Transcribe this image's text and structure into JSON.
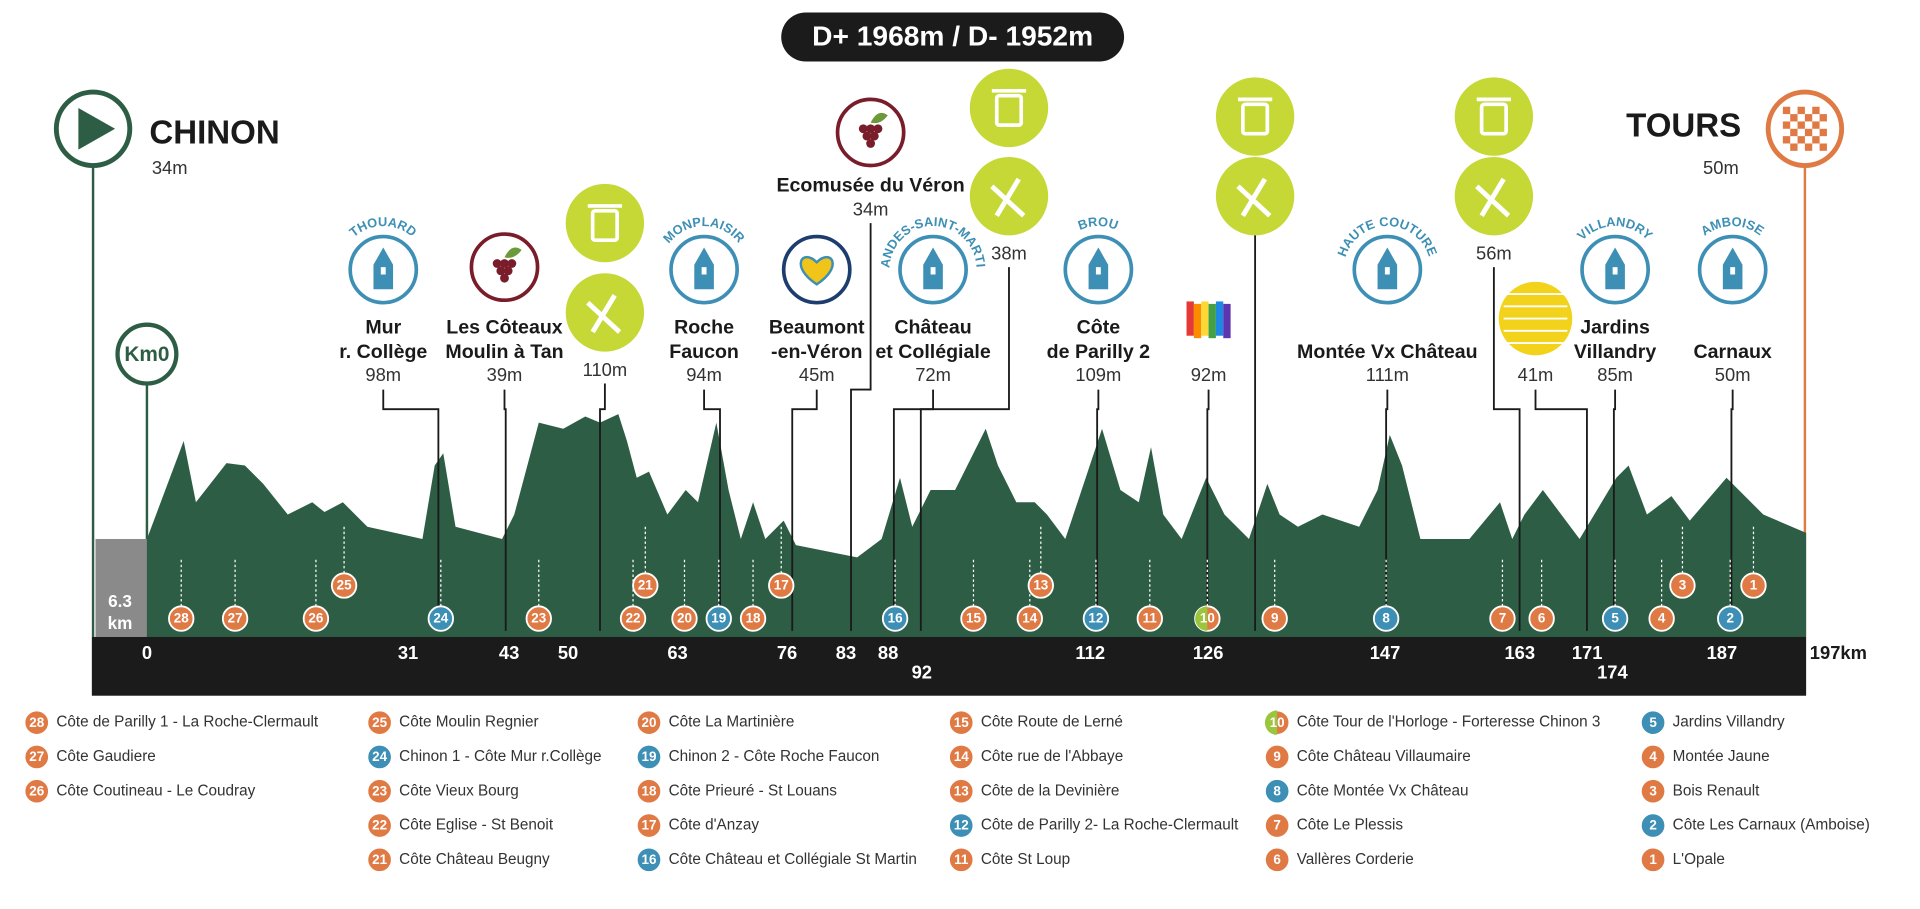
{
  "header": {
    "elevation": "D+ 1968m / D- 1952m"
  },
  "start": {
    "name": "CHINON",
    "altitude": "34m"
  },
  "finish": {
    "name": "TOURS",
    "altitude": "50m"
  },
  "km0": "Km0",
  "prologue": [
    "6.3",
    "km"
  ],
  "km_markers": [
    0,
    31,
    43,
    50,
    63,
    76,
    83,
    88,
    92,
    112,
    126,
    147,
    163,
    171,
    174,
    187,
    {
      "value": 197,
      "label": "197km"
    }
  ],
  "points": [
    {
      "icon": "tower",
      "town": "THOUARD",
      "name": [
        "Mur",
        "r. Collège"
      ],
      "altitude": "98m"
    },
    {
      "icon": "wine",
      "name": [
        "Les Côteaux",
        "Moulin à Tan"
      ],
      "altitude": "39m"
    },
    {
      "icon": "services",
      "altitude": "110m"
    },
    {
      "icon": "tower",
      "town": "MONPLAISIR",
      "name": [
        "Roche",
        "Faucon"
      ],
      "altitude": "94m"
    },
    {
      "icon": "heart",
      "name": [
        "Beaumont",
        "-en-Véron"
      ],
      "altitude": "45m"
    },
    {
      "icon": "wine",
      "name": [
        "Ecomusée du Véron"
      ],
      "altitude": "34m"
    },
    {
      "icon": "tower",
      "town": "CANDES-SAINT-MARTIN",
      "name": [
        "Château",
        "et Collégiale"
      ],
      "altitude": "72m"
    },
    {
      "icon": "services",
      "altitude": "38m"
    },
    {
      "icon": "tower",
      "town": "BROU",
      "name": [
        "Côte",
        "de Parilly 2"
      ],
      "altitude": "109m"
    },
    {
      "icon": "rainbow",
      "altitude": "92m"
    },
    {
      "icon": "services"
    },
    {
      "icon": "tower",
      "town": "HAUTE COUTURE",
      "name": [
        "Montée Vx Château"
      ],
      "altitude": "111m"
    },
    {
      "icon": "services",
      "altitude": "56m"
    },
    {
      "icon": "cobble",
      "altitude": "41m"
    },
    {
      "icon": "tower",
      "town": "VILLANDRY",
      "name": [
        "Jardins",
        "Villandry"
      ],
      "altitude": "85m"
    },
    {
      "icon": "tower",
      "town": "AMBOISE",
      "name": [
        "Carnaux"
      ],
      "altitude": "50m"
    }
  ],
  "climbs": [
    {
      "number": 28,
      "name": "Côte de Parilly 1 - La Roche-Clermault",
      "color": "#e07a45"
    },
    {
      "number": 27,
      "name": "Côte Gaudiere",
      "color": "#e07a45"
    },
    {
      "number": 26,
      "name": "Côte Coutineau - Le Coudray",
      "color": "#e07a45"
    },
    {
      "number": 25,
      "name": "Côte Moulin Regnier",
      "color": "#e07a45"
    },
    {
      "number": 24,
      "name": "Chinon 1 - Côte Mur r.Collège",
      "color": "#3d8fb5"
    },
    {
      "number": 23,
      "name": "Côte Vieux Bourg",
      "color": "#e07a45"
    },
    {
      "number": 22,
      "name": "Côte Eglise - St Benoit",
      "color": "#e07a45"
    },
    {
      "number": 21,
      "name": "Côte Château Beugny",
      "color": "#e07a45"
    },
    {
      "number": 20,
      "name": "Côte La Martinière",
      "color": "#e07a45"
    },
    {
      "number": 19,
      "name": "Chinon 2 - Côte Roche Faucon",
      "color": "#3d8fb5"
    },
    {
      "number": 18,
      "name": "Côte Prieuré - St Louans",
      "color": "#e07a45"
    },
    {
      "number": 17,
      "name": "Côte d'Anzay",
      "color": "#e07a45"
    },
    {
      "number": 16,
      "name": "Côte Château et Collégiale St Martin",
      "color": "#3d8fb5"
    },
    {
      "number": 15,
      "name": "Côte Route de Lerné",
      "color": "#e07a45"
    },
    {
      "number": 14,
      "name": "Côte rue de l'Abbaye",
      "color": "#e07a45"
    },
    {
      "number": 13,
      "name": "Côte de la Devinière",
      "color": "#e07a45"
    },
    {
      "number": 12,
      "name": "Côte de Parilly 2- La Roche-Clermault",
      "color": "#3d8fb5"
    },
    {
      "number": 11,
      "name": "Côte St Loup",
      "color": "#e07a45"
    },
    {
      "number": 10,
      "name": "Côte Tour de l'Horloge - Forteresse Chinon 3",
      "color": "#e07a45",
      "color2": "#9bc53d"
    },
    {
      "number": 9,
      "name": "Côte Château Villaumaire",
      "color": "#e07a45"
    },
    {
      "number": 8,
      "name": "Côte Montée Vx Château",
      "color": "#3d8fb5"
    },
    {
      "number": 7,
      "name": "Côte Le Plessis",
      "color": "#e07a45"
    },
    {
      "number": 6,
      "name": "Vallères Corderie",
      "color": "#e07a45"
    },
    {
      "number": 5,
      "name": "Jardins Villandry",
      "color": "#3d8fb5"
    },
    {
      "number": 4,
      "name": "Montée Jaune",
      "color": "#e07a45"
    },
    {
      "number": 3,
      "name": "Bois Renault",
      "color": "#e07a45"
    },
    {
      "number": 2,
      "name": "Côte Les Carnaux (Amboise)",
      "color": "#3d8fb5"
    },
    {
      "number": 1,
      "name": "L'Opale",
      "color": "#e07a45"
    }
  ]
}
